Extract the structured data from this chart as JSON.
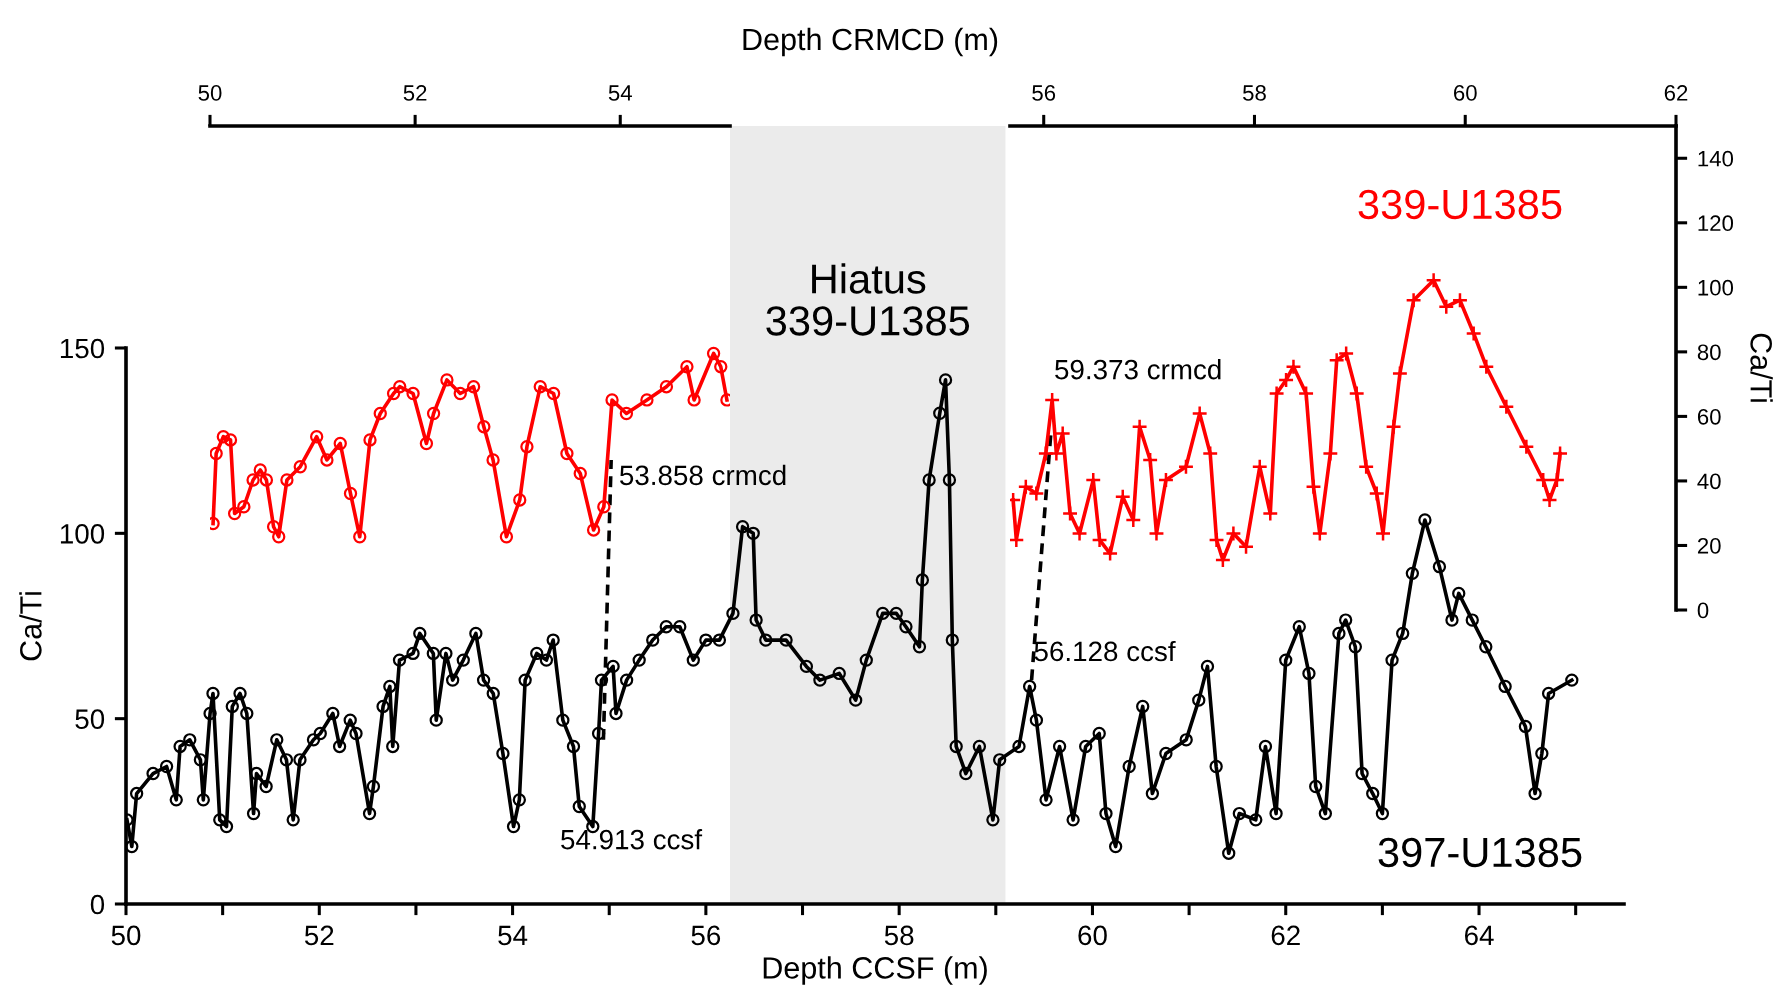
{
  "chart_data": [
    {
      "type": "line",
      "xlabel": "Depth CCSF (m)",
      "ylabel": "Ca/Ti",
      "xlim": [
        50,
        65.5
      ],
      "xticks": [
        50,
        {
          "value": 51,
          "label": null
        },
        52,
        {
          "value": 53,
          "label": null
        },
        54,
        {
          "value": 55,
          "label": null
        },
        56,
        {
          "value": 57,
          "label": null
        },
        58,
        {
          "value": 59,
          "label": null
        },
        60,
        {
          "value": 61,
          "label": null
        },
        62,
        {
          "value": 63,
          "label": null
        },
        64,
        {
          "value": 65,
          "label": null
        }
      ],
      "ylim": [
        0,
        150
      ],
      "yticks": [
        0,
        50,
        100,
        150
      ],
      "series": [
        {
          "color": "#000000",
          "marker": "circle",
          "x": [
            50.01,
            50.06,
            50.11,
            50.28,
            50.42,
            50.52,
            50.56,
            50.66,
            50.77,
            50.8,
            50.87,
            50.9,
            50.97,
            51.04,
            51.1,
            51.18,
            51.25,
            51.32,
            51.35,
            51.45,
            51.56,
            51.66,
            51.73,
            51.8,
            51.94,
            52.01,
            52.14,
            52.21,
            52.32,
            52.38,
            52.52,
            52.56,
            52.66,
            52.73,
            52.76,
            52.83,
            52.97,
            53.04,
            53.18,
            53.21,
            53.31,
            53.38,
            53.49,
            53.62,
            53.7,
            53.8,
            53.9,
            54.01,
            54.07,
            54.13,
            54.25,
            54.35,
            54.42,
            54.52,
            54.63,
            54.69,
            54.83,
            54.89,
            54.92,
            55.04,
            55.07,
            55.18,
            55.31,
            55.45,
            55.59,
            55.73,
            55.87,
            56.0,
            56.14,
            56.28,
            56.38,
            56.49,
            56.52,
            56.62,
            56.83,
            57.04,
            57.18,
            57.38,
            57.55,
            57.66,
            57.83,
            57.97,
            58.07,
            58.21,
            58.24,
            58.31,
            58.42,
            58.48,
            58.52,
            58.55,
            58.59,
            58.69,
            58.83,
            58.97,
            59.04,
            59.24,
            59.35,
            59.42,
            59.52,
            59.66,
            59.8,
            59.93,
            60.07,
            60.14,
            60.24,
            60.38,
            60.52,
            60.62,
            60.76,
            60.97,
            61.1,
            61.19,
            61.28,
            61.41,
            61.52,
            61.69,
            61.79,
            61.9,
            62.0,
            62.14,
            62.24,
            62.31,
            62.41,
            62.55,
            62.62,
            62.72,
            62.79,
            62.9,
            63.0,
            63.1,
            63.21,
            63.31,
            63.44,
            63.59,
            63.72,
            63.79,
            63.93,
            64.07,
            64.27,
            64.48,
            64.58,
            64.65,
            64.72,
            64.96
          ],
          "values": [
            22.7,
            15.5,
            29.8,
            35.2,
            37.1,
            28.1,
            42.5,
            44.3,
            38.9,
            28.1,
            51.4,
            56.8,
            22.7,
            20.9,
            53.3,
            56.8,
            51.4,
            24.4,
            35.2,
            31.7,
            44.3,
            38.9,
            22.7,
            38.9,
            44.3,
            46.0,
            51.4,
            42.5,
            49.6,
            46.0,
            24.4,
            31.7,
            53.3,
            58.7,
            42.5,
            65.8,
            67.6,
            73.0,
            67.6,
            49.6,
            67.6,
            60.4,
            65.8,
            73.0,
            60.4,
            56.8,
            40.6,
            20.9,
            28.1,
            60.4,
            67.6,
            65.8,
            71.2,
            49.6,
            42.5,
            26.3,
            20.9,
            46.0,
            60.4,
            64.1,
            51.4,
            60.4,
            65.8,
            71.2,
            74.8,
            74.8,
            65.8,
            71.2,
            71.2,
            78.4,
            101.8,
            100.0,
            76.6,
            71.2,
            71.2,
            64.1,
            60.4,
            62.2,
            55.0,
            65.8,
            78.4,
            78.4,
            74.8,
            69.4,
            87.4,
            114.4,
            132.4,
            141.4,
            114.4,
            71.2,
            42.5,
            35.2,
            42.5,
            22.7,
            38.9,
            42.5,
            58.7,
            49.6,
            28.1,
            42.5,
            22.7,
            42.5,
            46.0,
            24.4,
            15.5,
            37.1,
            53.3,
            29.8,
            40.6,
            44.3,
            55.0,
            64.1,
            37.1,
            13.7,
            24.4,
            22.7,
            42.5,
            24.4,
            65.8,
            74.8,
            62.2,
            31.7,
            24.4,
            73.0,
            76.6,
            69.4,
            35.2,
            29.8,
            24.4,
            65.8,
            73.0,
            89.2,
            103.6,
            91.0,
            76.6,
            83.8,
            76.6,
            69.4,
            58.7,
            47.9,
            29.8,
            40.6,
            56.8,
            60.4
          ]
        },
        {
          "color": "#000000",
          "marker": "none",
          "line_style": "dashed",
          "x": [
            54.94,
            55.02
          ],
          "values": [
            44.3,
            119.8
          ]
        },
        {
          "color": "#000000",
          "marker": "none",
          "line_style": "dashed",
          "x": [
            59.37,
            59.57
          ],
          "values": [
            60.4,
            127.2
          ]
        }
      ],
      "bands": [
        {
          "axis": "x",
          "from": 56.25,
          "to": 59.1,
          "label": "Hiatus\n339-U1385",
          "color": "#ebebeb"
        }
      ],
      "annotations": [
        {
          "text": "53.858 crmcd",
          "x": 55.1,
          "y": 115
        },
        {
          "text": "56.128 ccsf",
          "x": 59.39,
          "y": 67.5
        },
        "54.913 ccsf",
        "59.373 crmcd",
        "397-U1385"
      ]
    },
    {
      "type": "line",
      "xlabel": "Depth CRMCD (m)",
      "xlim": [
        50,
        55.07
      ],
      "xticks": [
        50,
        52,
        54
      ],
      "ylim": [
        0,
        150
      ],
      "tick_labels": "x",
      "series": [
        {
          "color": "#ff0000",
          "marker": "circle",
          "x": [
            50.03,
            50.06,
            50.13,
            50.2,
            50.24,
            50.33,
            50.42,
            50.49,
            50.55,
            50.62,
            50.67,
            50.75,
            50.88,
            51.04,
            51.14,
            51.27,
            51.37,
            51.46,
            51.56,
            51.66,
            51.79,
            51.85,
            51.98,
            52.11,
            52.18,
            52.31,
            52.44,
            52.57,
            52.67,
            52.76,
            52.89,
            53.02,
            53.09,
            53.22,
            53.35,
            53.48,
            53.61,
            53.74,
            53.84,
            53.92,
            54.06,
            54.26,
            54.45,
            54.65,
            54.72,
            54.91,
            54.98,
            55.04
          ],
          "values": [
            26.8,
            48.5,
            53.7,
            52.7,
            29.9,
            32.0,
            40.3,
            43.4,
            40.3,
            25.8,
            22.7,
            40.3,
            44.4,
            53.7,
            46.5,
            51.6,
            36.1,
            22.7,
            52.7,
            60.9,
            67.1,
            69.2,
            67.1,
            51.6,
            60.9,
            71.3,
            67.1,
            69.2,
            56.8,
            46.5,
            22.7,
            34.1,
            50.6,
            69.2,
            67.1,
            48.5,
            42.3,
            24.8,
            32.0,
            65.1,
            60.9,
            65.1,
            69.2,
            75.4,
            65.1,
            79.5,
            75.4,
            65.1
          ]
        }
      ]
    },
    {
      "type": "line",
      "xlim": [
        55.68,
        62
      ],
      "xticks": [
        56,
        58,
        60,
        62
      ],
      "ylim": [
        0,
        150
      ],
      "yticks": [
        0,
        20,
        40,
        60,
        80,
        100,
        120,
        140
      ],
      "ylabel": "Ca/Ti",
      "series": [
        {
          "color": "#ff0000",
          "marker": "cross",
          "x": [
            55.71,
            55.74,
            55.83,
            55.93,
            56.02,
            56.08,
            56.12,
            56.18,
            56.25,
            56.34,
            56.47,
            56.53,
            56.63,
            56.75,
            56.85,
            56.91,
            57.01,
            57.07,
            57.16,
            57.35,
            57.48,
            57.58,
            57.64,
            57.7,
            57.8,
            57.92,
            58.05,
            58.15,
            58.21,
            58.3,
            58.37,
            58.49,
            58.56,
            58.62,
            58.72,
            58.78,
            58.87,
            58.97,
            59.06,
            59.16,
            59.22,
            59.32,
            59.38,
            59.51,
            59.7,
            59.82,
            59.95,
            60.08,
            60.2,
            60.39,
            60.58,
            60.74,
            60.8,
            60.87,
            60.9
          ],
          "values": [
            34.1,
            21.7,
            38.2,
            36.1,
            48.5,
            65.1,
            48.5,
            54.7,
            29.9,
            23.7,
            40.3,
            21.7,
            17.5,
            35.1,
            27.9,
            56.8,
            46.5,
            23.7,
            40.3,
            44.4,
            60.9,
            48.5,
            21.7,
            15.5,
            23.7,
            19.6,
            44.4,
            29.9,
            67.1,
            71.3,
            75.4,
            67.1,
            38.2,
            23.7,
            48.5,
            77.4,
            79.5,
            67.1,
            44.4,
            36.1,
            23.7,
            56.8,
            73.3,
            96.0,
            102.2,
            94.0,
            96.0,
            85.7,
            75.4,
            63.0,
            50.6,
            40.3,
            34.1,
            40.3,
            48.5
          ]
        }
      ],
      "annotations": [
        "339-U1385"
      ]
    }
  ]
}
